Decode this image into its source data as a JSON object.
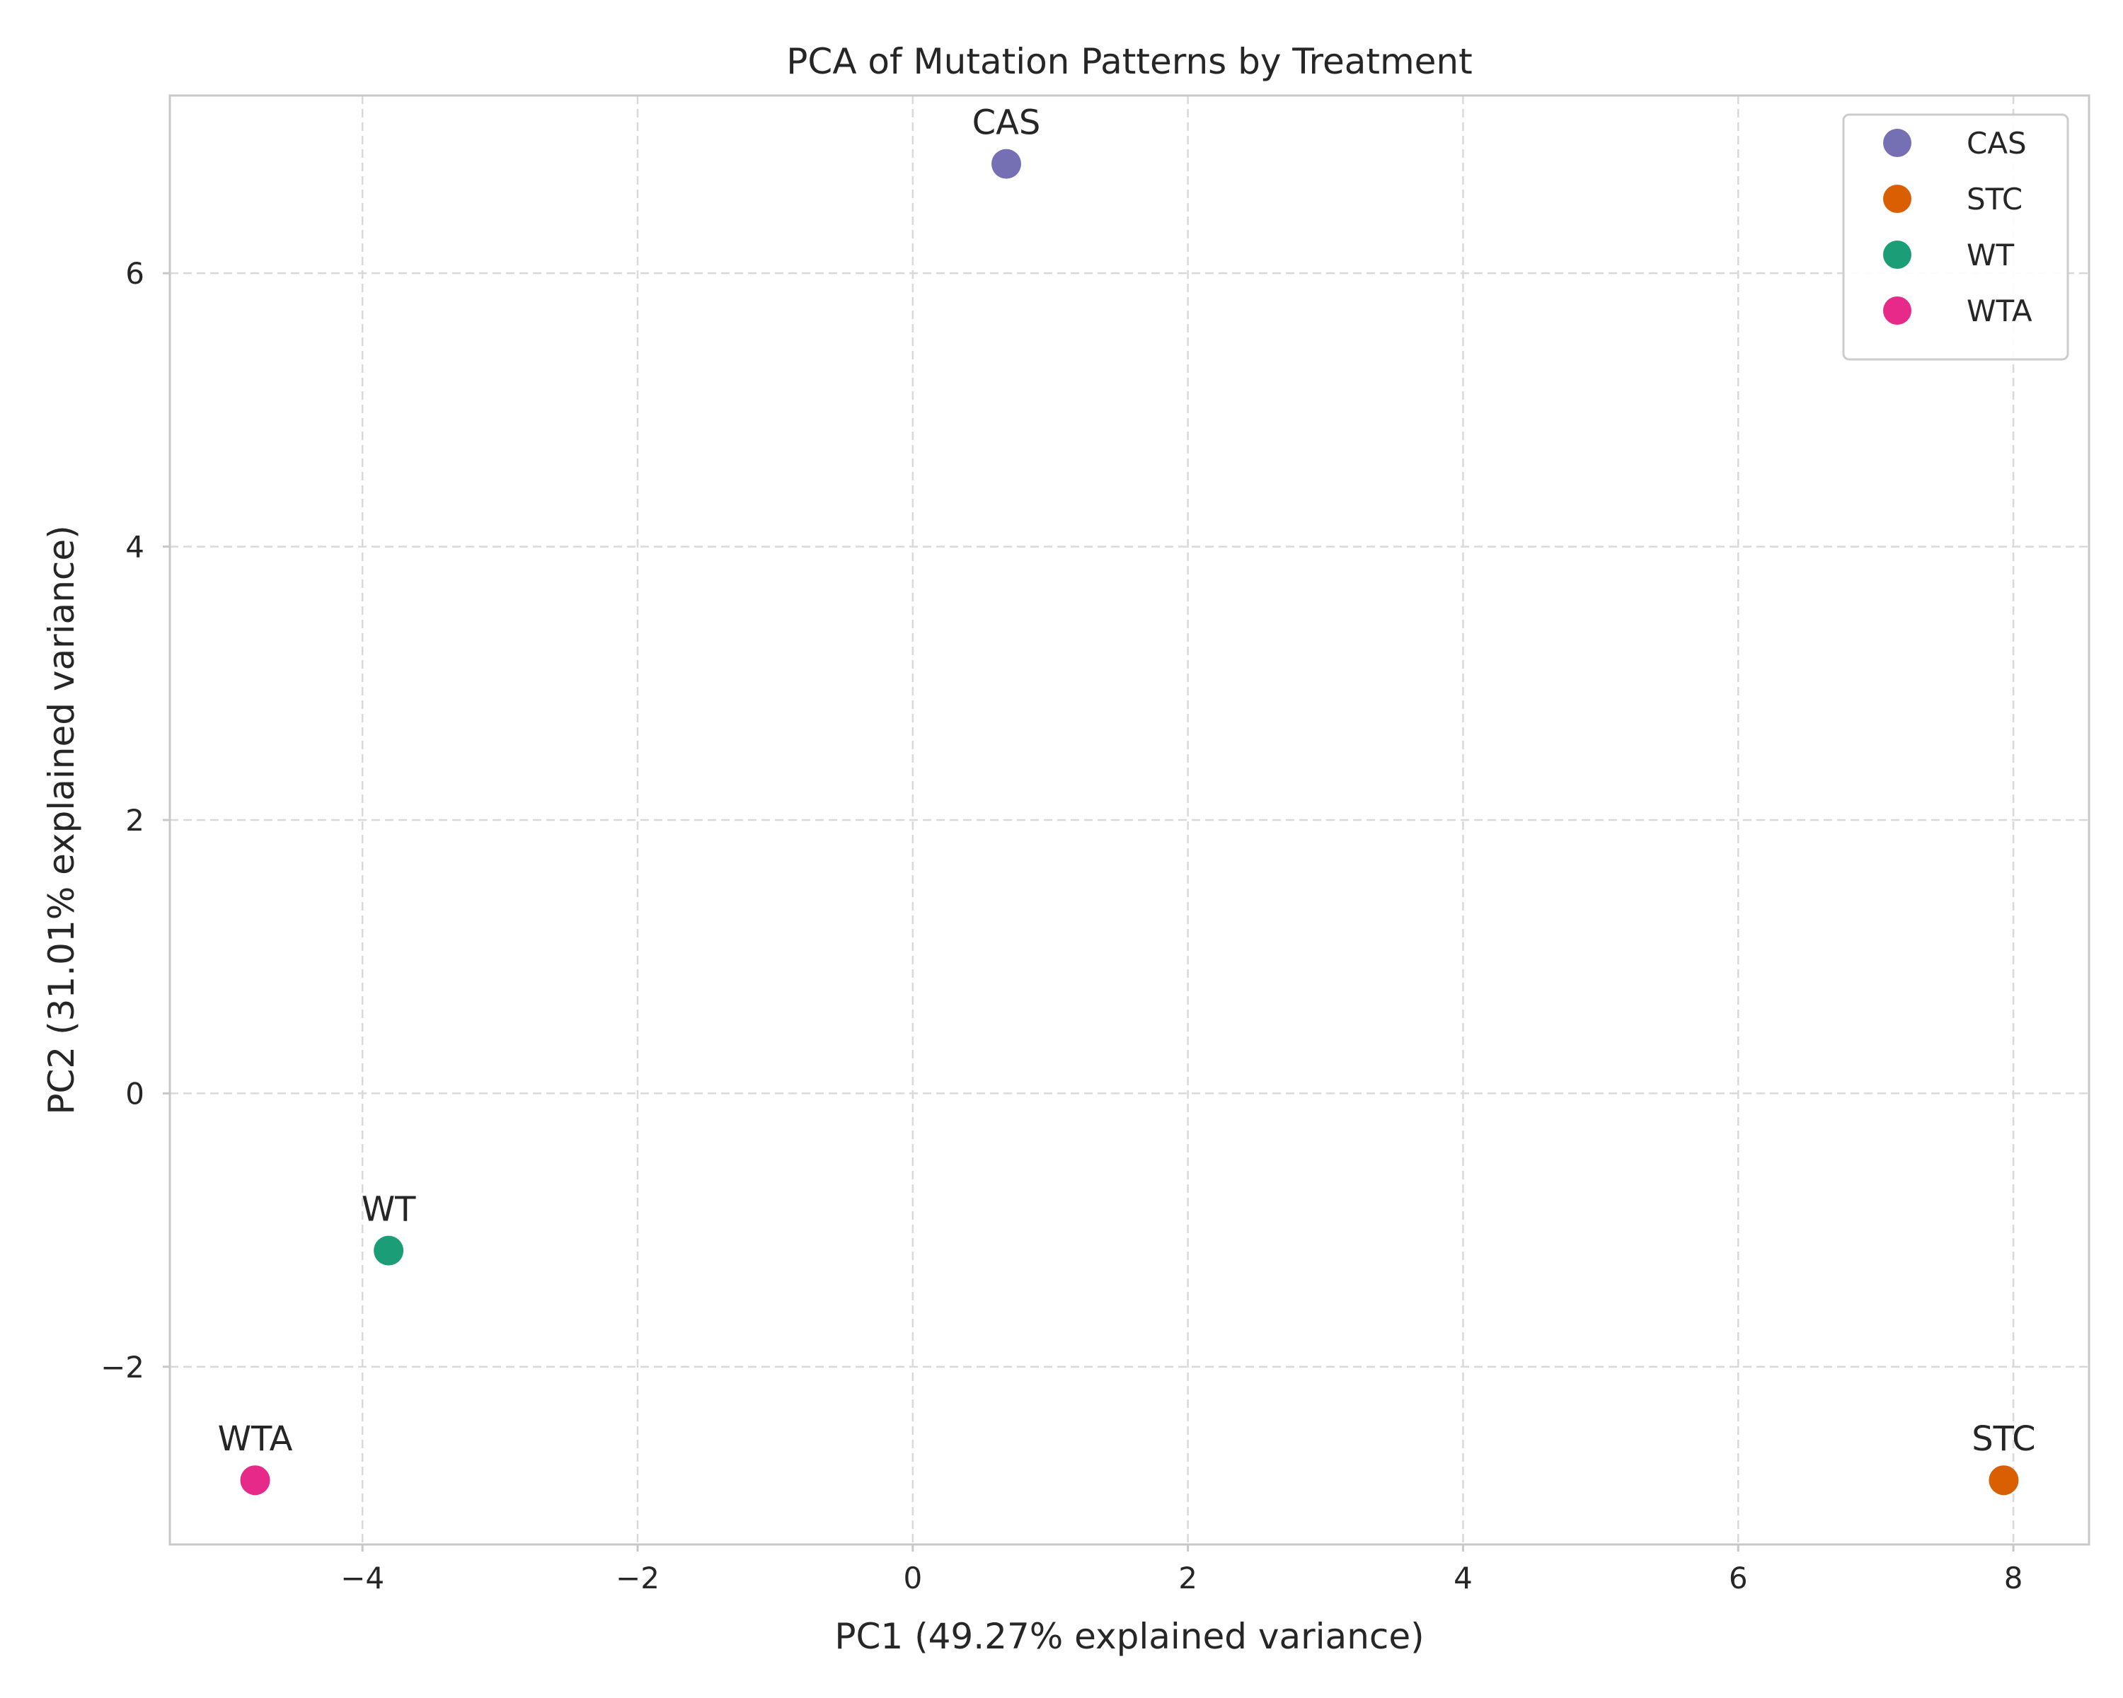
{
  "chart_data": {
    "type": "scatter",
    "title": "PCA of Mutation Patterns by Treatment",
    "xlabel": "PC1 (49.27% explained variance)",
    "ylabel": "PC2 (31.01% explained variance)",
    "xlim": [
      -5.4,
      8.55
    ],
    "ylim": [
      -3.3,
      7.3
    ],
    "xticks": [
      -4,
      -2,
      0,
      2,
      4,
      6,
      8
    ],
    "yticks": [
      -2,
      0,
      2,
      4,
      6
    ],
    "xtick_labels": [
      "−4",
      "−2",
      "0",
      "2",
      "4",
      "6",
      "8"
    ],
    "ytick_labels": [
      "−2",
      "0",
      "2",
      "4",
      "6"
    ],
    "grid": true,
    "legend_position": "top-right",
    "series": [
      {
        "name": "CAS",
        "color": "#7570b3",
        "x": 0.68,
        "y": 6.8,
        "label": "CAS"
      },
      {
        "name": "STC",
        "color": "#d95f02",
        "x": 7.93,
        "y": -2.83,
        "label": "STC"
      },
      {
        "name": "WT",
        "color": "#1b9e77",
        "x": -3.81,
        "y": -1.15,
        "label": "WT"
      },
      {
        "name": "WTA",
        "color": "#e7298a",
        "x": -4.78,
        "y": -2.83,
        "label": "WTA"
      }
    ]
  }
}
